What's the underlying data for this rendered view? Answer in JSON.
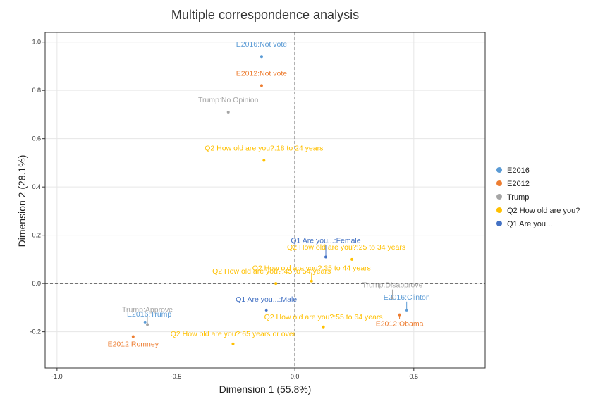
{
  "chart_data": {
    "type": "scatter",
    "title": "Multiple correspondence analysis",
    "xlabel": "Dimension 1 (55.8%)",
    "ylabel": "Dimension 2 (28.1%)",
    "xlim": [
      -1.05,
      0.8
    ],
    "ylim": [
      -0.35,
      1.04
    ],
    "x_ticks": [
      {
        "value": -1.0,
        "label": "-1.0"
      },
      {
        "value": -0.5,
        "label": "-0.5"
      },
      {
        "value": 0.0,
        "label": "0.0"
      },
      {
        "value": 0.5,
        "label": "0.5"
      }
    ],
    "y_ticks": [
      {
        "value": -0.2,
        "label": "-0.2"
      },
      {
        "value": 0.0,
        "label": "0.0"
      },
      {
        "value": 0.2,
        "label": "0.2"
      },
      {
        "value": 0.4,
        "label": "0.4"
      },
      {
        "value": 0.6,
        "label": "0.6"
      },
      {
        "value": 0.8,
        "label": "0.8"
      },
      {
        "value": 1.0,
        "label": "1.0"
      }
    ],
    "grid": true,
    "zero_lines": "dashed",
    "legend_position": "right",
    "series": [
      {
        "name": "E2016",
        "color": "#5b9bd5",
        "points": [
          {
            "label": "E2016:Not vote",
            "x": -0.14,
            "y": 0.94
          },
          {
            "label": "E2016:Clinton",
            "x": 0.47,
            "y": -0.11
          },
          {
            "label": "E2016:Trump",
            "x": -0.63,
            "y": -0.16
          }
        ]
      },
      {
        "name": "E2012",
        "color": "#ed7d31",
        "points": [
          {
            "label": "E2012:Not vote",
            "x": -0.14,
            "y": 0.82
          },
          {
            "label": "E2012:Obama",
            "x": 0.44,
            "y": -0.13
          },
          {
            "label": "E2012:Romney",
            "x": -0.68,
            "y": -0.22
          }
        ]
      },
      {
        "name": "Trump",
        "color": "#a5a5a5",
        "points": [
          {
            "label": "Trump:No Opinion",
            "x": -0.28,
            "y": 0.71
          },
          {
            "label": "Trump:Disapprove",
            "x": 0.41,
            "y": -0.06
          },
          {
            "label": "Trump:Approve",
            "x": -0.62,
            "y": -0.17
          }
        ]
      },
      {
        "name": "Q2 How old are you?",
        "color": "#ffc000",
        "points": [
          {
            "label": "Q2 How old are you?:18 to 24 years",
            "x": -0.13,
            "y": 0.51
          },
          {
            "label": "Q2 How old are you?:25 to 34 years",
            "x": 0.24,
            "y": 0.1
          },
          {
            "label": "Q2 How old are you?:35 to 44 years",
            "x": 0.07,
            "y": 0.01
          },
          {
            "label": "Q2 How old are you?:45 to 54 years",
            "x": -0.08,
            "y": 0.0
          },
          {
            "label": "Q2 How old are you?:55 to 64 years",
            "x": 0.12,
            "y": -0.18
          },
          {
            "label": "Q2 How old are you?:65 years or over",
            "x": -0.26,
            "y": -0.25
          }
        ]
      },
      {
        "name": "Q1 Are you...",
        "color": "#4472c4",
        "points": [
          {
            "label": "Q1 Are you...:Female",
            "x": 0.13,
            "y": 0.11
          },
          {
            "label": "Q1 Are you...:Male",
            "x": -0.12,
            "y": -0.11
          }
        ]
      }
    ]
  }
}
